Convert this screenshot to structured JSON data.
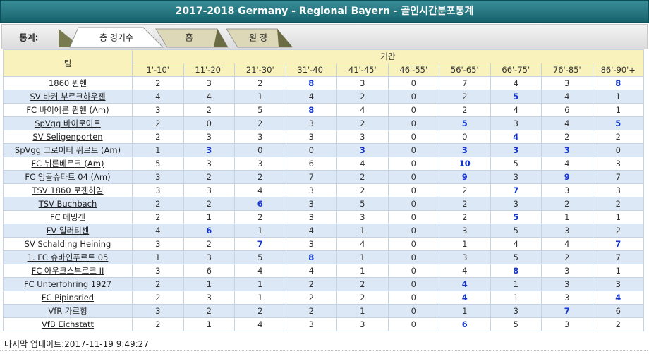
{
  "title": "2017-2018 Germany - Regional Bayern - 골인시간분포통계",
  "tabs": {
    "label": "통계:",
    "items": [
      "총 경기수",
      "홈",
      "원 정"
    ]
  },
  "table": {
    "team_header": "팀",
    "period_header": "기간",
    "columns": [
      "1'-10'",
      "11'-20'",
      "21'-30'",
      "31'-40'",
      "41'-45'",
      "46'-55'",
      "56'-65'",
      "66'-75'",
      "76'-85'",
      "86'-90'+"
    ],
    "rows": [
      {
        "team": "1860 뮌헨",
        "values": [
          2,
          3,
          2,
          8,
          3,
          0,
          7,
          4,
          3,
          8
        ]
      },
      {
        "team": "SV 바커 부르크하우젠",
        "values": [
          4,
          4,
          1,
          4,
          2,
          0,
          2,
          5,
          4,
          1
        ]
      },
      {
        "team": "FC 바이에른 뮌헨 (Am)",
        "values": [
          3,
          2,
          5,
          8,
          4,
          0,
          2,
          4,
          6,
          1
        ]
      },
      {
        "team": "SpVgg 바이로이트",
        "values": [
          2,
          0,
          2,
          3,
          2,
          0,
          5,
          3,
          4,
          5
        ]
      },
      {
        "team": "SV Seligenporten",
        "values": [
          2,
          3,
          3,
          3,
          3,
          0,
          0,
          4,
          2,
          2
        ]
      },
      {
        "team": "SpVgg 그로이터 퓌르트 (Am)",
        "values": [
          1,
          3,
          0,
          0,
          3,
          0,
          3,
          3,
          3,
          0
        ]
      },
      {
        "team": "FC 뉘른베르크 (Am)",
        "values": [
          5,
          3,
          3,
          6,
          4,
          0,
          10,
          5,
          4,
          3
        ]
      },
      {
        "team": "FC 잉골슈타트 04 (Am)",
        "values": [
          3,
          2,
          2,
          7,
          2,
          0,
          9,
          3,
          9,
          7
        ]
      },
      {
        "team": "TSV 1860 로젠하임",
        "values": [
          3,
          3,
          4,
          3,
          2,
          0,
          2,
          7,
          3,
          3
        ]
      },
      {
        "team": "TSV Buchbach",
        "values": [
          2,
          2,
          6,
          3,
          5,
          0,
          2,
          3,
          2,
          2
        ]
      },
      {
        "team": "FC 메밍겐",
        "values": [
          2,
          1,
          2,
          3,
          3,
          0,
          2,
          5,
          1,
          1
        ]
      },
      {
        "team": "FV 일러티센",
        "values": [
          4,
          6,
          1,
          4,
          1,
          0,
          3,
          5,
          3,
          2
        ]
      },
      {
        "team": "SV Schalding Heining",
        "values": [
          3,
          2,
          7,
          3,
          4,
          0,
          1,
          4,
          4,
          7
        ]
      },
      {
        "team": "1. FC 슈바인푸르트 05",
        "values": [
          1,
          3,
          5,
          8,
          1,
          0,
          3,
          5,
          2,
          7
        ]
      },
      {
        "team": "FC 아우크스부르크 II",
        "values": [
          3,
          6,
          4,
          4,
          1,
          0,
          4,
          8,
          3,
          1
        ]
      },
      {
        "team": "FC Unterfohring 1927",
        "values": [
          2,
          1,
          1,
          2,
          2,
          0,
          4,
          1,
          3,
          3
        ]
      },
      {
        "team": "FC Pipinsried",
        "values": [
          2,
          3,
          1,
          2,
          2,
          0,
          4,
          1,
          3,
          4
        ]
      },
      {
        "team": "VfR 가르힝",
        "values": [
          3,
          2,
          2,
          2,
          1,
          0,
          1,
          3,
          7,
          6
        ]
      },
      {
        "team": "VfB Eichstatt",
        "values": [
          2,
          1,
          4,
          3,
          3,
          0,
          6,
          5,
          3,
          2
        ]
      }
    ]
  },
  "footer": "마지막 업데이트:2017-11-19 9:49:27"
}
